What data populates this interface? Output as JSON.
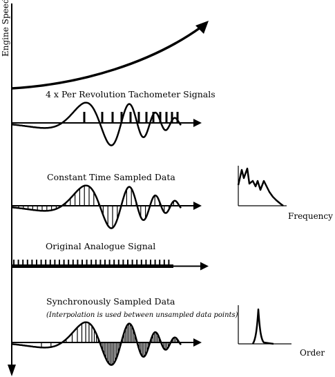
{
  "axis": {
    "y_label": "Engine Speed"
  },
  "panels": {
    "tachometer": {
      "title": "4 x Per Revolution Tachometer Signals"
    },
    "constant_time": {
      "title": "Constant Time Sampled Data"
    },
    "original": {
      "title": "Original Analogue Signal"
    },
    "synchronous": {
      "title": "Synchronously Sampled Data",
      "note": "(Interpolation is used between unsampled data points)"
    }
  },
  "spectra": {
    "frequency": {
      "label": "Frequency"
    },
    "order": {
      "label": "Order"
    }
  }
}
